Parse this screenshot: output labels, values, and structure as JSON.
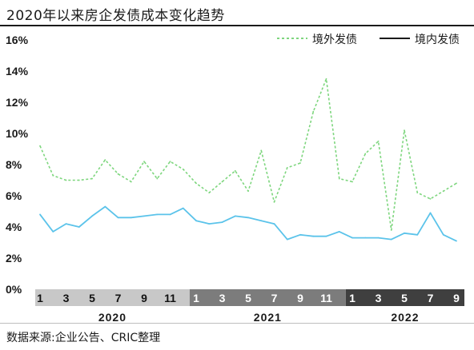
{
  "title": "2020年以来房企发债成本变化趋势",
  "source": "数据来源:企业公告、CRIC整理",
  "chart_data": {
    "type": "line",
    "title": "2020年以来房企发债成本变化趋势",
    "xlabel": "",
    "ylabel": "",
    "ylim": [
      0,
      16
    ],
    "yticks": [
      "0%",
      "2%",
      "4%",
      "6%",
      "8%",
      "10%",
      "12%",
      "14%",
      "16%"
    ],
    "grid": false,
    "legend_position": "top-right",
    "x": [
      "2020-01",
      "2020-02",
      "2020-03",
      "2020-04",
      "2020-05",
      "2020-06",
      "2020-07",
      "2020-08",
      "2020-09",
      "2020-10",
      "2020-11",
      "2020-12",
      "2021-01",
      "2021-02",
      "2021-03",
      "2021-04",
      "2021-05",
      "2021-06",
      "2021-07",
      "2021-08",
      "2021-09",
      "2021-10",
      "2021-11",
      "2021-12",
      "2022-01",
      "2022-02",
      "2022-03",
      "2022-04",
      "2022-05",
      "2022-06",
      "2022-07",
      "2022-08",
      "2022-09"
    ],
    "month_ticks": [
      "1",
      "3",
      "5",
      "7",
      "9",
      "11",
      "1",
      "3",
      "5",
      "7",
      "9",
      "11",
      "1",
      "3",
      "5",
      "7",
      "9"
    ],
    "year_labels": [
      "2020",
      "2021",
      "2022"
    ],
    "band_colors": [
      "#c8c8c8",
      "#7c7c7c",
      "#3f3f3f"
    ],
    "series": [
      {
        "name": "境外发债",
        "style": "dashed",
        "color": "#7ed67e",
        "values": [
          9.2,
          7.3,
          7.0,
          7.0,
          7.1,
          8.3,
          7.4,
          6.9,
          8.2,
          7.1,
          8.2,
          7.7,
          6.8,
          6.2,
          6.9,
          7.6,
          6.3,
          8.9,
          5.6,
          7.8,
          8.1,
          11.4,
          13.5,
          7.1,
          6.9,
          8.7,
          9.5,
          3.8,
          10.2,
          6.2,
          5.8,
          6.3,
          6.8
        ]
      },
      {
        "name": "境内发债",
        "style": "solid",
        "color": "#5bc3ea",
        "values": [
          4.8,
          3.7,
          4.2,
          4.0,
          4.7,
          5.3,
          4.6,
          4.6,
          4.7,
          4.8,
          4.8,
          5.2,
          4.4,
          4.2,
          4.3,
          4.7,
          4.6,
          4.4,
          4.2,
          3.2,
          3.5,
          3.4,
          3.4,
          3.7,
          3.3,
          3.3,
          3.3,
          3.2,
          3.6,
          3.5,
          4.9,
          3.5,
          3.1
        ]
      }
    ]
  }
}
